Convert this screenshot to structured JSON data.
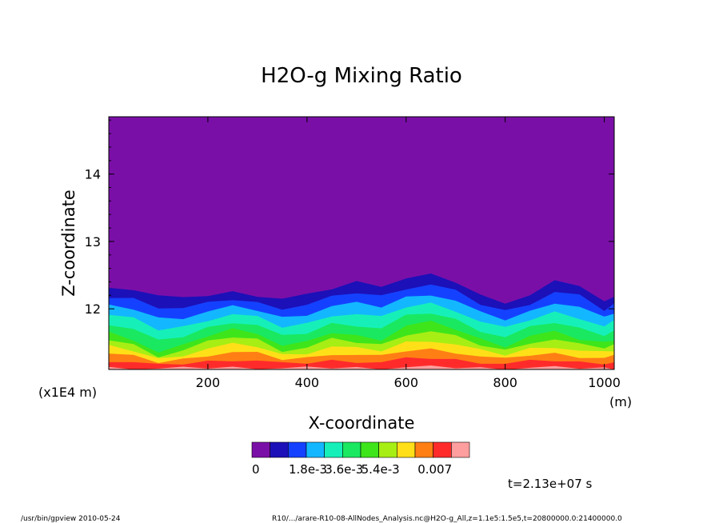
{
  "chart_data": {
    "type": "heatmap",
    "title": "H2O-g Mixing Ratio",
    "xlabel": "X-coordinate",
    "ylabel": "Z-coordinate",
    "x_unit": "(m)",
    "y_unit": "(x1E4 m)",
    "xlim": [
      0,
      1020
    ],
    "ylim": [
      11.1,
      14.85
    ],
    "x_ticks": [
      200,
      400,
      600,
      800,
      1000
    ],
    "y_ticks": [
      12,
      13,
      14
    ],
    "colorbar": {
      "colors": [
        "#7a0fa8",
        "#1c10b8",
        "#1441ff",
        "#13b7ff",
        "#16f0b8",
        "#1ae860",
        "#3ee51b",
        "#a7ee14",
        "#ffe018",
        "#ff7f14",
        "#ff2b2b",
        "#ff9e9e"
      ],
      "tick_labels": [
        "0",
        "1.8e-3",
        "3.6e-3",
        "5.4e-3",
        "0.007"
      ]
    },
    "profile": {
      "x": [
        0,
        50,
        100,
        150,
        200,
        250,
        300,
        350,
        400,
        450,
        500,
        550,
        600,
        650,
        700,
        750,
        800,
        850,
        900,
        950,
        1000,
        1020
      ],
      "top_z": [
        12.3,
        12.3,
        12.2,
        12.15,
        12.2,
        12.25,
        12.2,
        12.15,
        12.2,
        12.3,
        12.4,
        12.35,
        12.45,
        12.5,
        12.4,
        12.2,
        12.1,
        12.2,
        12.4,
        12.35,
        12.1,
        12.2
      ],
      "moist_z": [
        11.65,
        11.55,
        11.35,
        11.45,
        11.6,
        11.7,
        11.65,
        11.45,
        11.5,
        11.65,
        11.6,
        11.55,
        11.75,
        11.8,
        11.7,
        11.55,
        11.45,
        11.6,
        11.65,
        11.55,
        11.5,
        11.55
      ]
    }
  },
  "annotation": "t=2.13e+07 s",
  "footer": {
    "left": "/usr/bin/gpview  2010-05-24",
    "right": "R10/.../arare-R10-08-AllNodes_Analysis.nc@H2O-g_All,z=1.1e5:1.5e5,t=20800000.0:21400000.0"
  }
}
